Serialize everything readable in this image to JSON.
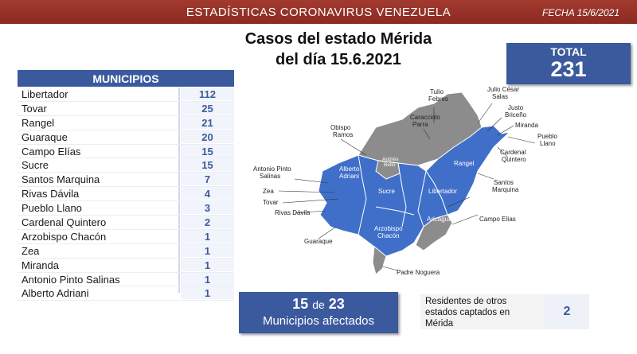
{
  "header": {
    "title": "ESTADÍSTICAS CORONAVIRUS VENEZUELA",
    "date": "FECHA 15/6/2021"
  },
  "main_title": {
    "line1": "Casos del estado Mérida",
    "line2": "del día 15.6.2021"
  },
  "total": {
    "label": "TOTAL",
    "value": "231"
  },
  "table": {
    "header": "MUNICIPIOS",
    "rows": [
      {
        "name": "Libertador",
        "cases": "112"
      },
      {
        "name": "Tovar",
        "cases": "25"
      },
      {
        "name": "Rangel",
        "cases": "21"
      },
      {
        "name": "Guaraque",
        "cases": "20"
      },
      {
        "name": "Campo Elías",
        "cases": "15"
      },
      {
        "name": "Sucre",
        "cases": "15"
      },
      {
        "name": "Santos Marquina",
        "cases": "7"
      },
      {
        "name": "Rivas Dávila",
        "cases": "4"
      },
      {
        "name": "Pueblo Llano",
        "cases": "3"
      },
      {
        "name": "Cardenal Quintero",
        "cases": "2"
      },
      {
        "name": "Arzobispo Chacón",
        "cases": "1"
      },
      {
        "name": "Zea",
        "cases": "1"
      },
      {
        "name": "Miranda",
        "cases": "1"
      },
      {
        "name": "Antonio Pinto Salinas",
        "cases": "1"
      },
      {
        "name": "Alberto Adriani",
        "cases": "1"
      }
    ]
  },
  "map": {
    "colors": {
      "affected": "#3f6fc8",
      "unaffected": "#8c8c8c"
    },
    "labels": {
      "tulio": [
        "Tulio",
        "Febres"
      ],
      "julio": [
        "Julio César",
        "Salas"
      ],
      "justo": [
        "Justo",
        "Briceño"
      ],
      "caracciolo": [
        "Caracciolo",
        "Parra"
      ],
      "obispo": [
        "Obispo",
        "Ramos"
      ],
      "miranda": "Miranda",
      "pueblo_llano": [
        "Pueblo",
        "Llano"
      ],
      "cardenal": [
        "Cardenal",
        "Quintero"
      ],
      "antonio": [
        "Antonio Pinto",
        "Salinas"
      ],
      "alberto": [
        "Alberto",
        "Adriani"
      ],
      "andres": [
        "Andrés",
        "Bello"
      ],
      "rangel": "Rangel",
      "santos": [
        "Santos",
        "Marquina"
      ],
      "zea": "Zea",
      "tovar": "Tovar",
      "sucre": "Sucre",
      "libertador": "Libertador",
      "rivas": "Rivas Dávila",
      "aricagua": "Aricagua",
      "campo": "Campo Elías",
      "arzobispo": [
        "Arzobispo",
        "Chacón"
      ],
      "guaraque": "Guaraque",
      "padre": "Padre Noguera"
    }
  },
  "affected": {
    "count": "15",
    "of": "de",
    "total": "23",
    "label": "Municipios afectados"
  },
  "residents": {
    "label": [
      "Residentes de otros",
      "estados captados en",
      "Mérida"
    ],
    "value": "2"
  }
}
